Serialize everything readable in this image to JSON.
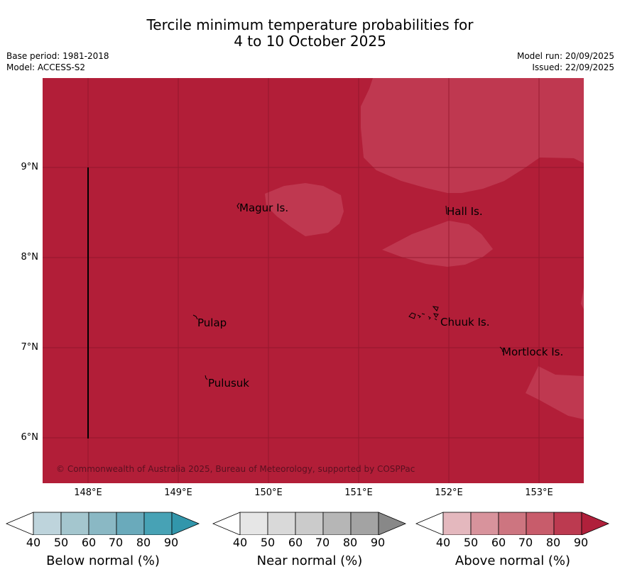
{
  "title": {
    "line1": "Tercile minimum temperature probabilities for",
    "line2": "4 to 10 October 2025"
  },
  "meta": {
    "base_period": "Base period: 1981-2018",
    "model": "Model: ACCESS-S2",
    "model_run": "Model run: 20/09/2025",
    "issued": "Issued: 22/09/2025"
  },
  "map": {
    "background_color": "#b21e38",
    "light_patch_color": "#bf3850",
    "gridline_color": "#8a1429",
    "lon_ticks": [
      "148°E",
      "149°E",
      "150°E",
      "151°E",
      "152°E",
      "153°E"
    ],
    "lat_ticks": [
      "9°N",
      "8°N",
      "7°N",
      "6°N"
    ],
    "places": [
      {
        "name": "Magur Is."
      },
      {
        "name": "Hall Is."
      },
      {
        "name": "Pulap"
      },
      {
        "name": "Chuuk Is."
      },
      {
        "name": "Mortlock Is."
      },
      {
        "name": "Pulusuk"
      }
    ],
    "copyright": "© Commonwealth of Australia 2025, Bureau of Meteorology, supported by COSPPac"
  },
  "legends": [
    {
      "label": "Below normal (%)",
      "ticks": [
        "40",
        "50",
        "60",
        "70",
        "80",
        "90"
      ],
      "colors": [
        "#bed4dc",
        "#a4c6ce",
        "#8ab8c4",
        "#6aaabb",
        "#47a2b5",
        "#3296ab"
      ]
    },
    {
      "label": "Near normal (%)",
      "ticks": [
        "40",
        "50",
        "60",
        "70",
        "80",
        "90"
      ],
      "colors": [
        "#e6e6e6",
        "#d9d9d9",
        "#cbcbcb",
        "#b6b6b6",
        "#a3a3a3",
        "#888888"
      ]
    },
    {
      "label": "Above normal (%)",
      "ticks": [
        "40",
        "50",
        "60",
        "70",
        "80",
        "90"
      ],
      "colors": [
        "#e4b8be",
        "#d8939c",
        "#cd7580",
        "#c85c6b",
        "#bc3a50",
        "#b0203b"
      ]
    }
  ]
}
